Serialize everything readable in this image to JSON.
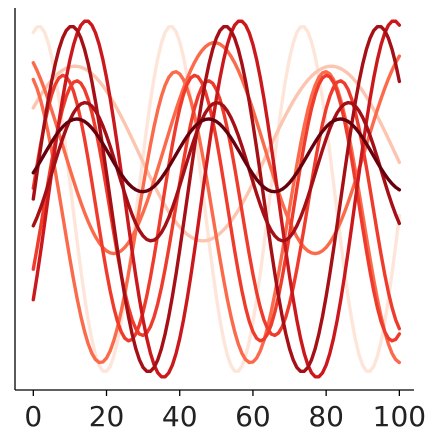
{
  "chart_data": {
    "type": "line",
    "title": "",
    "xlabel": "",
    "ylabel": "",
    "xlim": [
      -5,
      104
    ],
    "ylim": [
      -1.05,
      1.05
    ],
    "x_ticks": [
      0,
      20,
      40,
      60,
      80,
      100
    ],
    "y_ticks_visible": false,
    "grid": false,
    "legend": "none",
    "x_sample": {
      "start": 0,
      "end": 100,
      "step": 1
    },
    "series": [
      {
        "color": "#fee5d9",
        "formula": "A*sin(2*pi*x/P + phase) + offset",
        "amplitude": 0.95,
        "period": 36,
        "phase_rad": 1.3,
        "offset": 0.0
      },
      {
        "color": "#fcc5b0",
        "formula": "A*sin(2*pi*x/P + phase) + offset",
        "amplitude": 0.48,
        "period": 70,
        "phase_rad": 0.55,
        "offset": 0.25
      },
      {
        "color": "#fb6a4a",
        "formula": "A*sin(2*pi*x/P + phase) + offset",
        "amplitude": 0.58,
        "period": 55,
        "phase_rad": 2.2,
        "offset": 0.28
      },
      {
        "color": "#fb6a4a",
        "formula": "A*sin(2*pi*x/P + phase) + offset",
        "amplitude": 0.8,
        "period": 41,
        "phase_rad": 1.9,
        "offset": -0.1
      },
      {
        "color": "#ef3b2c",
        "formula": "A*sin(2*pi*x/P + phase) + offset",
        "amplitude": 0.7,
        "period": 36,
        "phase_rad": -0.5,
        "offset": -0.05
      },
      {
        "color": "#ef3b2c",
        "formula": "A*sin(2*pi*x/P + phase) + offset",
        "amplitude": 0.73,
        "period": 36,
        "phase_rad": 0.15,
        "offset": -0.05
      },
      {
        "color": "#cb181d",
        "formula": "A*sin(2*pi*x/P + phase) + offset",
        "amplitude": 0.98,
        "period": 42,
        "phase_rad": -0.6,
        "offset": 0.0
      },
      {
        "color": "#a50f15",
        "formula": "A*sin(2*pi*x/P + phase) + offset",
        "amplitude": 0.38,
        "period": 36,
        "phase_rad": -0.9,
        "offset": 0.15
      },
      {
        "color": "#a50f15",
        "formula": "A*sin(2*pi*x/P + phase) + offset",
        "amplitude": 0.95,
        "period": 42,
        "phase_rad": 0.0,
        "offset": 0.0
      },
      {
        "color": "#67000d",
        "formula": "A*sin(2*pi*x/P + phase) + offset",
        "amplitude": 0.2,
        "period": 36,
        "phase_rad": -0.5,
        "offset": 0.24
      }
    ]
  }
}
